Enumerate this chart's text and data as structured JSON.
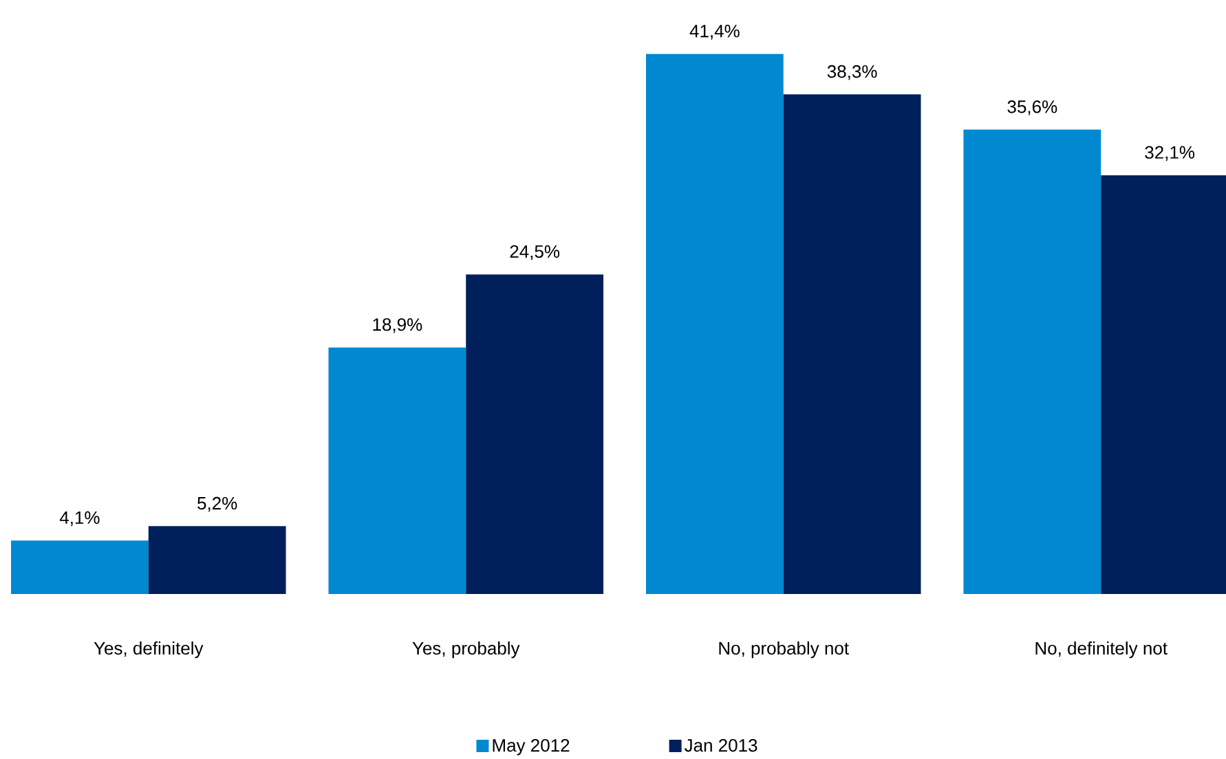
{
  "chart_data": {
    "type": "bar",
    "categories": [
      "Yes, definitely",
      "Yes, probably",
      "No, probably not",
      "No, definitely not"
    ],
    "series": [
      {
        "name": "May 2012",
        "color": "#0088d1",
        "values": [
          4.1,
          18.9,
          41.4,
          35.6
        ],
        "value_labels": [
          "4,1%",
          "18,9%",
          "41,4%",
          "35,6%"
        ]
      },
      {
        "name": "Jan 2013",
        "color": "#00205b",
        "values": [
          5.2,
          24.5,
          38.3,
          32.1
        ],
        "value_labels": [
          "5,2%",
          "24,5%",
          "38,3%",
          "32,1%"
        ]
      }
    ],
    "legend": "bottom"
  }
}
